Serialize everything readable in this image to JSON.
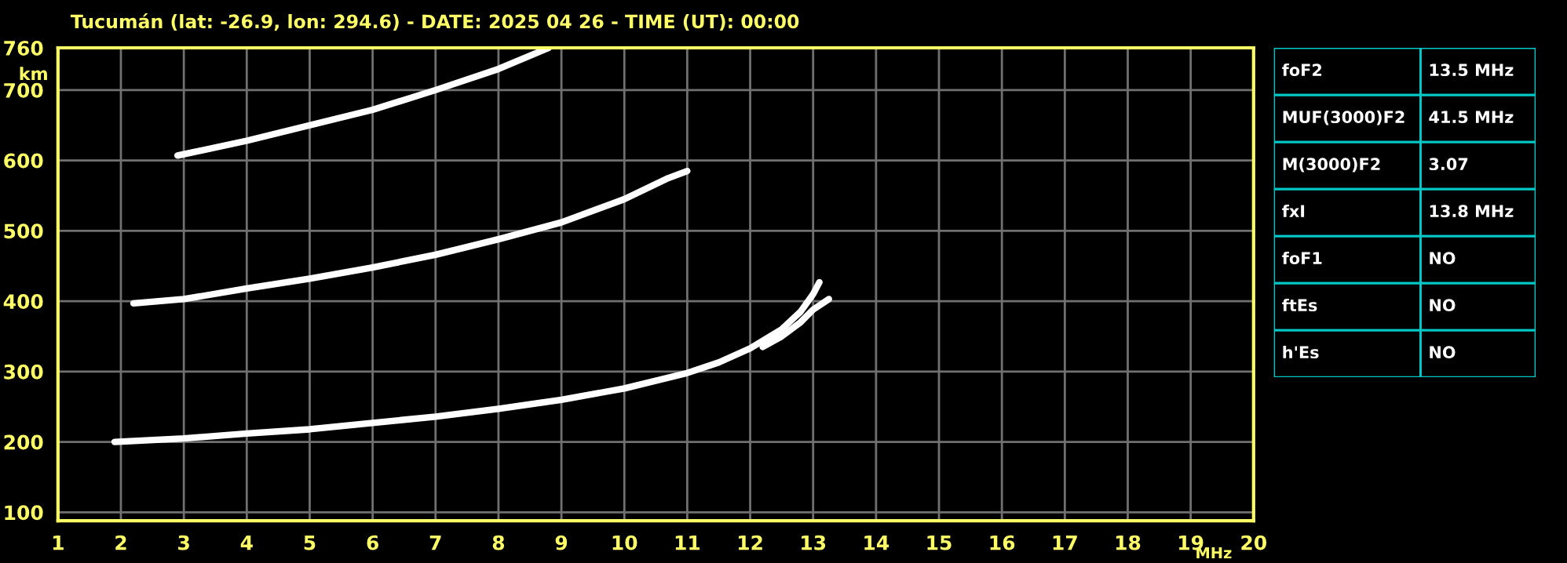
{
  "chart_data": [
    {
      "type": "line",
      "title": "Tucumán (lat: -26.9, lon: 294.6) - DATE: 2025 04 26 - TIME (UT): 00:00",
      "xlabel": "MHz",
      "ylabel": "km",
      "xlim": [
        1,
        20
      ],
      "xticks": [
        1,
        2,
        3,
        4,
        5,
        6,
        7,
        8,
        9,
        10,
        11,
        12,
        13,
        14,
        15,
        16,
        17,
        18,
        19,
        20
      ],
      "ylim": [
        88,
        760
      ],
      "yticks": [
        100,
        200,
        300,
        400,
        500,
        600,
        700,
        760
      ],
      "grid": true,
      "marker": "none",
      "line_style": "solid",
      "series": [
        {
          "color": "#ffffff",
          "x": [
            1.9,
            3,
            4,
            5,
            6,
            7,
            8,
            9,
            10,
            11,
            11.5,
            12,
            12.5,
            12.8,
            13.0,
            13.1
          ],
          "values": [
            200,
            205,
            212,
            218,
            227,
            236,
            247,
            260,
            276,
            298,
            313,
            333,
            360,
            385,
            410,
            427
          ]
        },
        {
          "color": "#ffffff",
          "x": [
            12.2,
            12.5,
            12.8,
            13.0,
            13.25
          ],
          "values": [
            335,
            350,
            370,
            388,
            403
          ]
        },
        {
          "color": "#ffffff",
          "x": [
            2.2,
            3,
            4,
            5,
            6,
            7,
            8,
            9,
            10,
            10.7,
            11
          ],
          "values": [
            397,
            403,
            418,
            432,
            448,
            466,
            488,
            512,
            545,
            575,
            585
          ]
        },
        {
          "color": "#ffffff",
          "x": [
            2.9,
            4,
            5,
            6,
            7,
            8,
            8.8
          ],
          "values": [
            607,
            628,
            650,
            672,
            700,
            730,
            760
          ]
        }
      ]
    },
    {
      "type": "other",
      "annotations": [
        "foF2",
        "13.5 MHz",
        "MUF(3000)F2",
        "41.5 MHz",
        "M(3000)F2",
        "3.07",
        "fxI",
        "13.8 MHz",
        "foF1",
        "NO",
        "ftEs",
        "NO",
        "h'Es",
        "NO"
      ]
    }
  ]
}
